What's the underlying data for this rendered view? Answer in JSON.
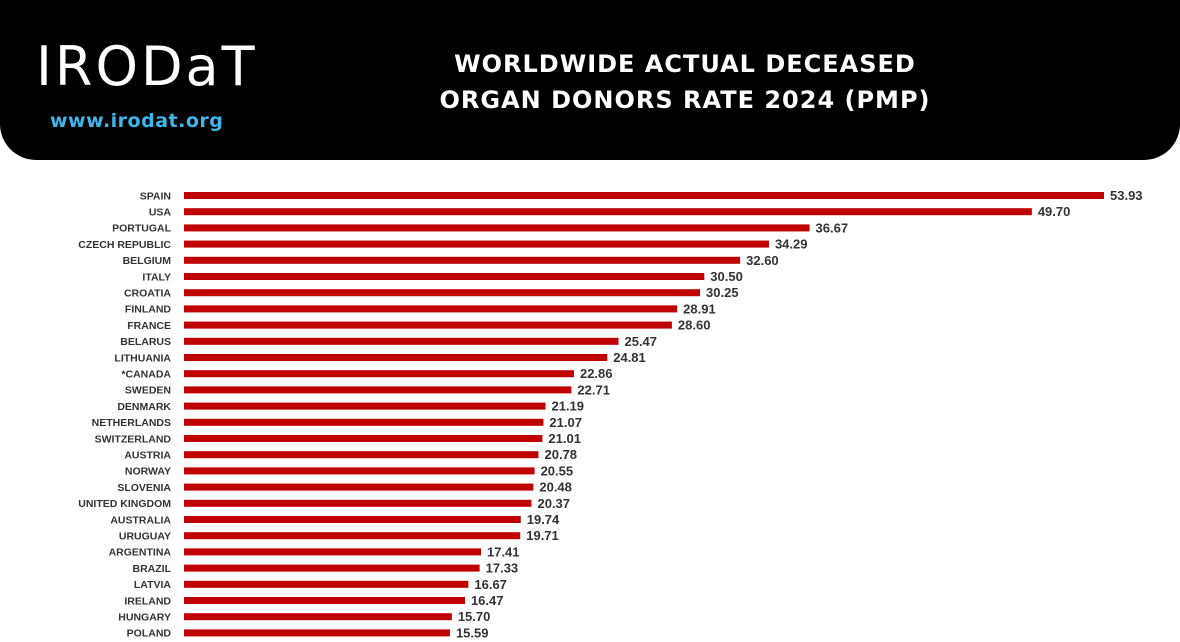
{
  "header": {
    "logo_text": "IRODaT",
    "url": "www.irodat.org",
    "title_line1": "WORLDWIDE ACTUAL DECEASED",
    "title_line2": "ORGAN DONORS RATE 2024 (PMP)"
  },
  "colors": {
    "header_bg": "#000000",
    "bar": "#c00000",
    "url": "#3fb6ea",
    "label": "#333333"
  },
  "chart_data": {
    "type": "bar",
    "orientation": "horizontal",
    "title": "WORLDWIDE ACTUAL DECEASED ORGAN DONORS RATE 2024 (PMP)",
    "categories": [
      "SPAIN",
      "USA",
      "PORTUGAL",
      "CZECH REPUBLIC",
      "BELGIUM",
      "ITALY",
      "CROATIA",
      "FINLAND",
      "FRANCE",
      "BELARUS",
      "LITHUANIA",
      "*CANADA",
      "SWEDEN",
      "DENMARK",
      "NETHERLANDS",
      "SWITZERLAND",
      "AUSTRIA",
      "NORWAY",
      "SLOVENIA",
      "UNITED KINGDOM",
      "AUSTRALIA",
      "URUGUAY",
      "ARGENTINA",
      "BRAZIL",
      "LATVIA",
      "IRELAND",
      "HUNGARY",
      "POLAND"
    ],
    "values": [
      53.93,
      49.7,
      36.67,
      34.29,
      32.6,
      30.5,
      30.25,
      28.91,
      28.6,
      25.47,
      24.81,
      22.86,
      22.71,
      21.19,
      21.07,
      21.01,
      20.78,
      20.55,
      20.48,
      20.37,
      19.74,
      19.71,
      17.41,
      17.33,
      16.67,
      16.47,
      15.7,
      15.59
    ],
    "value_labels": [
      "53.93",
      "49.70",
      "36.67",
      "34.29",
      "32.60",
      "30.50",
      "30.25",
      "28.91",
      "28.60",
      "25.47",
      "24.81",
      "22.86",
      "22.71",
      "21.19",
      "21.07",
      "21.01",
      "20.78",
      "20.55",
      "20.48",
      "20.37",
      "19.74",
      "19.71",
      "17.41",
      "17.33",
      "16.67",
      "16.47",
      "15.70",
      "15.59"
    ],
    "grid": false,
    "legend": "none"
  }
}
